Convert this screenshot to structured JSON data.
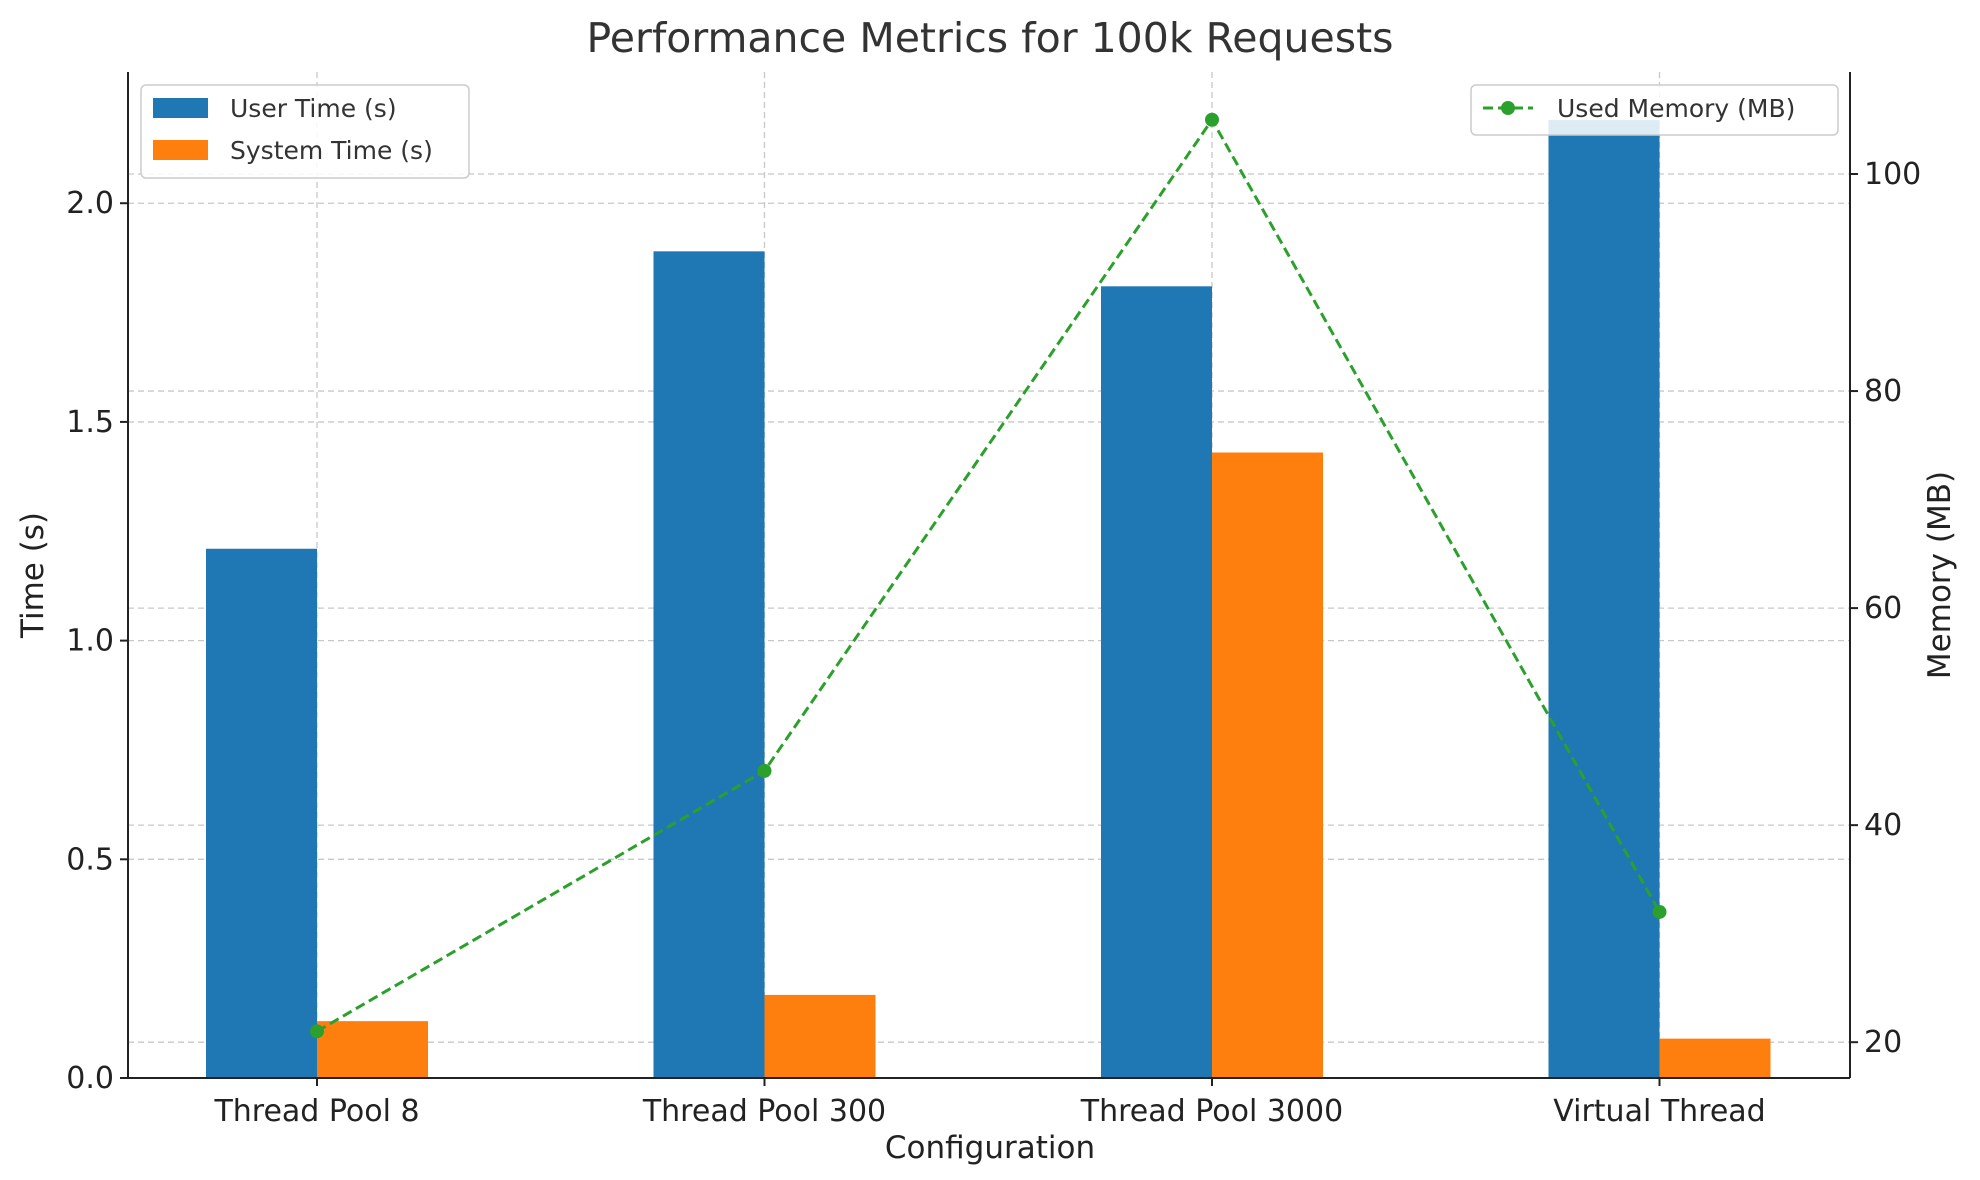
{
  "chart_data": {
    "type": "bar",
    "title": "Performance Metrics for 100k Requests",
    "xlabel": "Configuration",
    "ylabel": "Time (s)",
    "y2label": "Memory (MB)",
    "categories": [
      "Thread Pool 8",
      "Thread Pool 300",
      "Thread Pool 3000",
      "Virtual Thread"
    ],
    "ylim": [
      0,
      2.3
    ],
    "y_ticks": [
      "0.0",
      "0.5",
      "1.0",
      "1.5",
      "2.0"
    ],
    "y2lim": [
      16.7,
      109.4
    ],
    "y2_ticks": [
      "20",
      "40",
      "60",
      "80",
      "100"
    ],
    "grid": true,
    "series": [
      {
        "name": "User Time (s)",
        "kind": "bar",
        "axis": "left",
        "color": "#1f77b4",
        "values": [
          1.21,
          1.89,
          1.81,
          2.19
        ]
      },
      {
        "name": "System Time (s)",
        "kind": "bar",
        "axis": "left",
        "color": "#ff7f0e",
        "values": [
          0.13,
          0.19,
          1.43,
          0.09
        ]
      },
      {
        "name": "Used Memory (MB)",
        "kind": "line",
        "axis": "right",
        "style": "dashed",
        "marker": "circle",
        "color": "#2ca02c",
        "values": [
          21,
          45,
          105,
          32
        ]
      }
    ],
    "legends": [
      {
        "placement": "top-left",
        "entries": [
          "User Time (s)",
          "System Time (s)"
        ]
      },
      {
        "placement": "top-right",
        "entries": [
          "Used Memory (MB)"
        ]
      }
    ]
  }
}
